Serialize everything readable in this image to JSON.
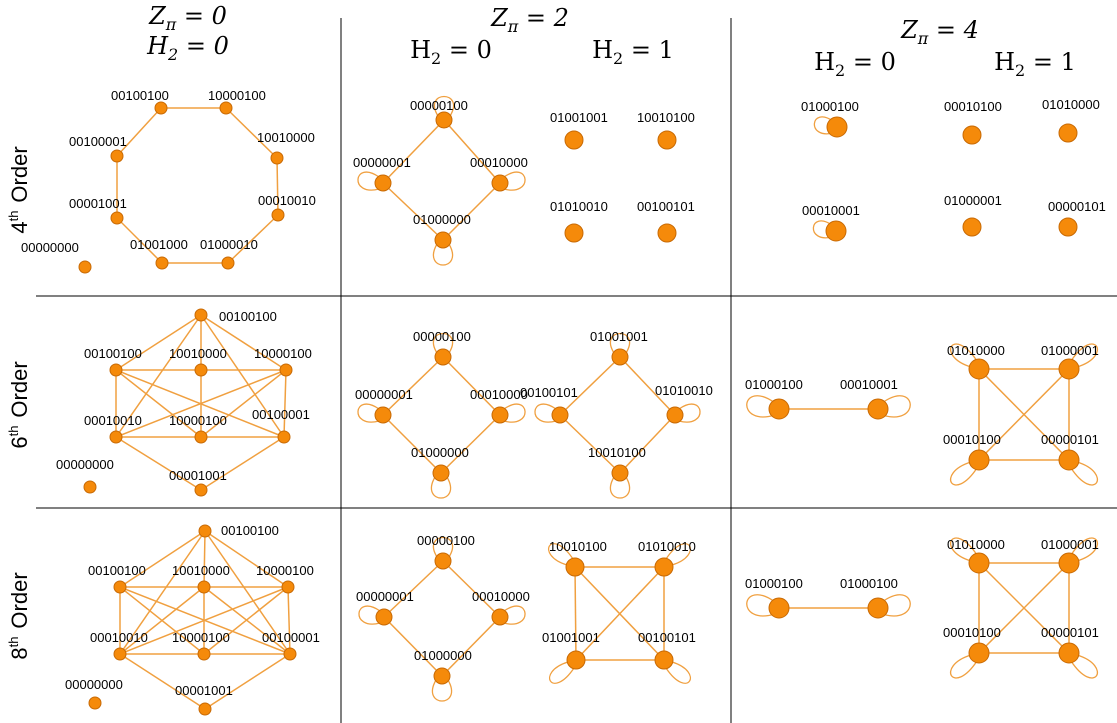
{
  "headers": {
    "col1": {
      "z": "Z_π = 0",
      "h": "H_2 = 0"
    },
    "col2": {
      "z": "Z_π = 2",
      "h_left": "H_2 = 0",
      "h_right": "H_2 = 1"
    },
    "col3": {
      "z": "Z_π = 4",
      "h_left": "H_2 = 0",
      "h_right": "H_2 = 1"
    }
  },
  "rows": [
    {
      "ordinal": "4",
      "sup": "th",
      "word": "Order"
    },
    {
      "ordinal": "6",
      "sup": "th",
      "word": "Order"
    },
    {
      "ordinal": "8",
      "sup": "th",
      "word": "Order"
    }
  ],
  "colors": {
    "node": "#f58a0a",
    "edge": "#f0a040",
    "grid": "#000000"
  },
  "labels": {
    "r1c1": [
      "00100100",
      "10000100",
      "00100001",
      "10010000",
      "00001001",
      "00010010",
      "00000000",
      "01001000",
      "01000010"
    ],
    "r1c2a": [
      "00000100",
      "00000001",
      "00010000",
      "01000000"
    ],
    "r1c2b": [
      "01001001",
      "10010100",
      "01010010",
      "00100101"
    ],
    "r1c3a": [
      "01000100",
      "00010001"
    ],
    "r1c3b": [
      "00010100",
      "01010000",
      "01000001",
      "00000101"
    ],
    "r2c1": [
      "00100100",
      "00100100",
      "10010000",
      "10000100",
      "00010010",
      "10000100",
      "00100001",
      "00000000",
      "00001001"
    ],
    "r2c2a": [
      "00000100",
      "00000001",
      "00010000",
      "01000000"
    ],
    "r2c2b": [
      "01001001",
      "00100101",
      "01010010",
      "10010100"
    ],
    "r2c3a": [
      "01000100",
      "00010001"
    ],
    "r2c3b": [
      "01010000",
      "01000001",
      "00010100",
      "00000101"
    ],
    "r3c1": [
      "00100100",
      "00100100",
      "10010000",
      "10000100",
      "00010010",
      "10000100",
      "00100001",
      "00000000",
      "00001001"
    ],
    "r3c2a": [
      "00000100",
      "00000001",
      "00010000",
      "01000000"
    ],
    "r3c2b": [
      "10010100",
      "01010010",
      "01001001",
      "00100101"
    ],
    "r3c3a": [
      "01000100",
      "01000100"
    ],
    "r3c3b": [
      "01010000",
      "01000001",
      "00010100",
      "00000101"
    ]
  }
}
